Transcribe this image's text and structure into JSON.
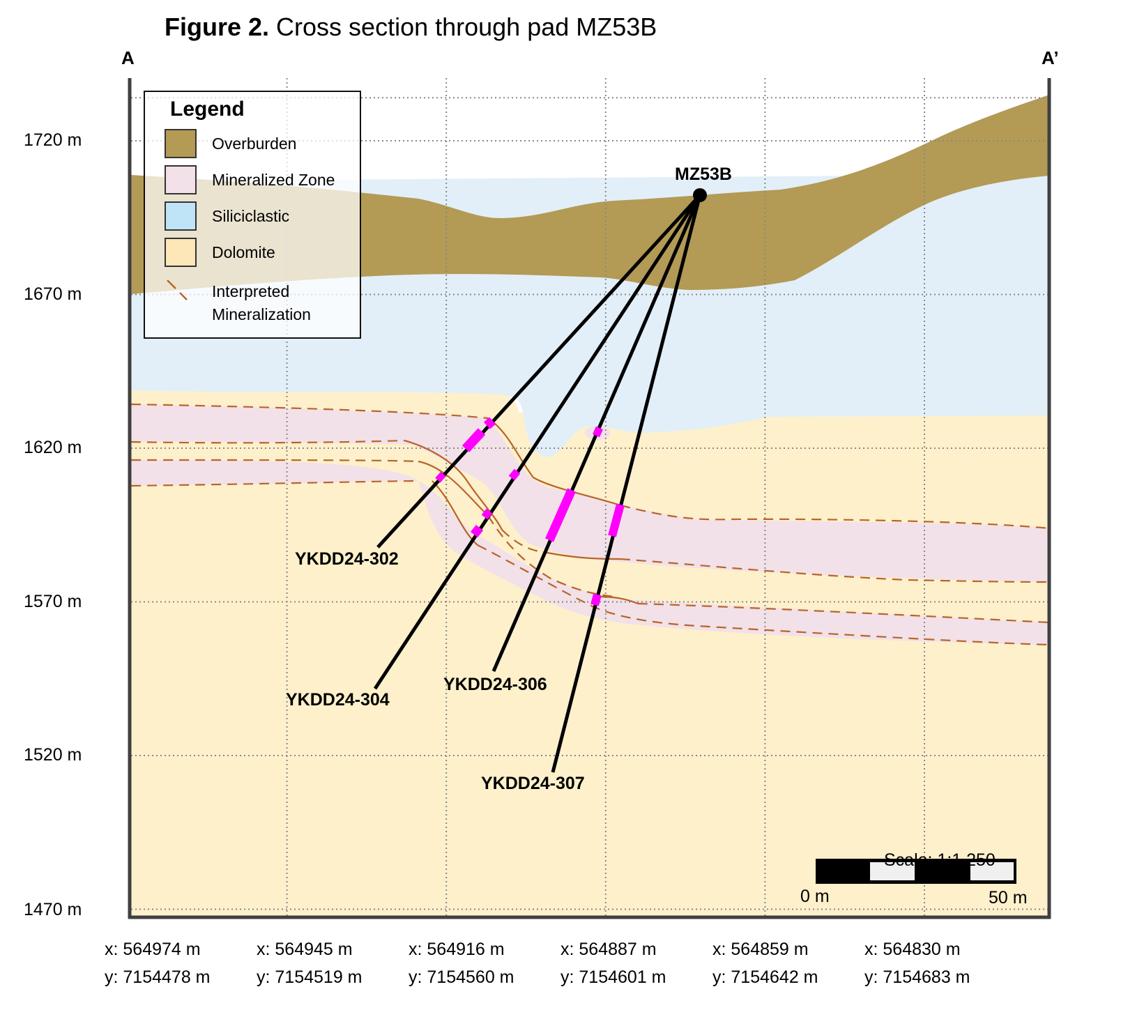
{
  "figure": {
    "title_bold": "Figure 2.",
    "title_rest": " Cross section through pad MZ53B",
    "section_start": "A",
    "section_end": "A’"
  },
  "elevation_axis": {
    "unit": "m",
    "labels": [
      "1720 m",
      "1670 m",
      "1620 m",
      "1570 m",
      "1520 m",
      "1470 m"
    ],
    "values": [
      1720,
      1670,
      1620,
      1570,
      1520,
      1470
    ]
  },
  "coordinates": [
    {
      "x": "x: 564974 m",
      "y": "y: 7154478 m"
    },
    {
      "x": "x: 564945 m",
      "y": "y: 7154519 m"
    },
    {
      "x": "x: 564916 m",
      "y": "y: 7154560 m"
    },
    {
      "x": "x: 564887 m",
      "y": "y: 7154601 m"
    },
    {
      "x": "x: 564859 m",
      "y": "y: 7154642 m"
    },
    {
      "x": "x: 564830 m",
      "y": "y: 7154683 m"
    }
  ],
  "legend": {
    "title": "Legend",
    "items": [
      {
        "label": "Overburden",
        "color": "#b39a55"
      },
      {
        "label": "Mineralized Zone",
        "color": "#f2e1e8"
      },
      {
        "label": "Siliciclastic",
        "color": "#bfe4f8"
      },
      {
        "label": "Dolomite",
        "color": "#fde6b8"
      }
    ],
    "line_item": {
      "line1": "Interpreted",
      "line2": "Mineralization",
      "color": "#b8642a"
    }
  },
  "pad": {
    "label": "MZ53B"
  },
  "drillholes": [
    {
      "label": "YKDD24-302"
    },
    {
      "label": "YKDD24-304"
    },
    {
      "label": "YKDD24-306"
    },
    {
      "label": "YKDD24-307"
    }
  ],
  "scale": {
    "title": "Scale: 1:1,250",
    "start_label": "0 m",
    "end_label": "50 m"
  },
  "colors": {
    "overburden": "#b39a55",
    "siliciclastic": "#e2eff9",
    "dolomite": "#fdf0cb",
    "mineralized_zone": "#f2e1e8",
    "intercept": "#ff00ff",
    "interpretation_line": "#b8642a",
    "frame": "#404040"
  }
}
